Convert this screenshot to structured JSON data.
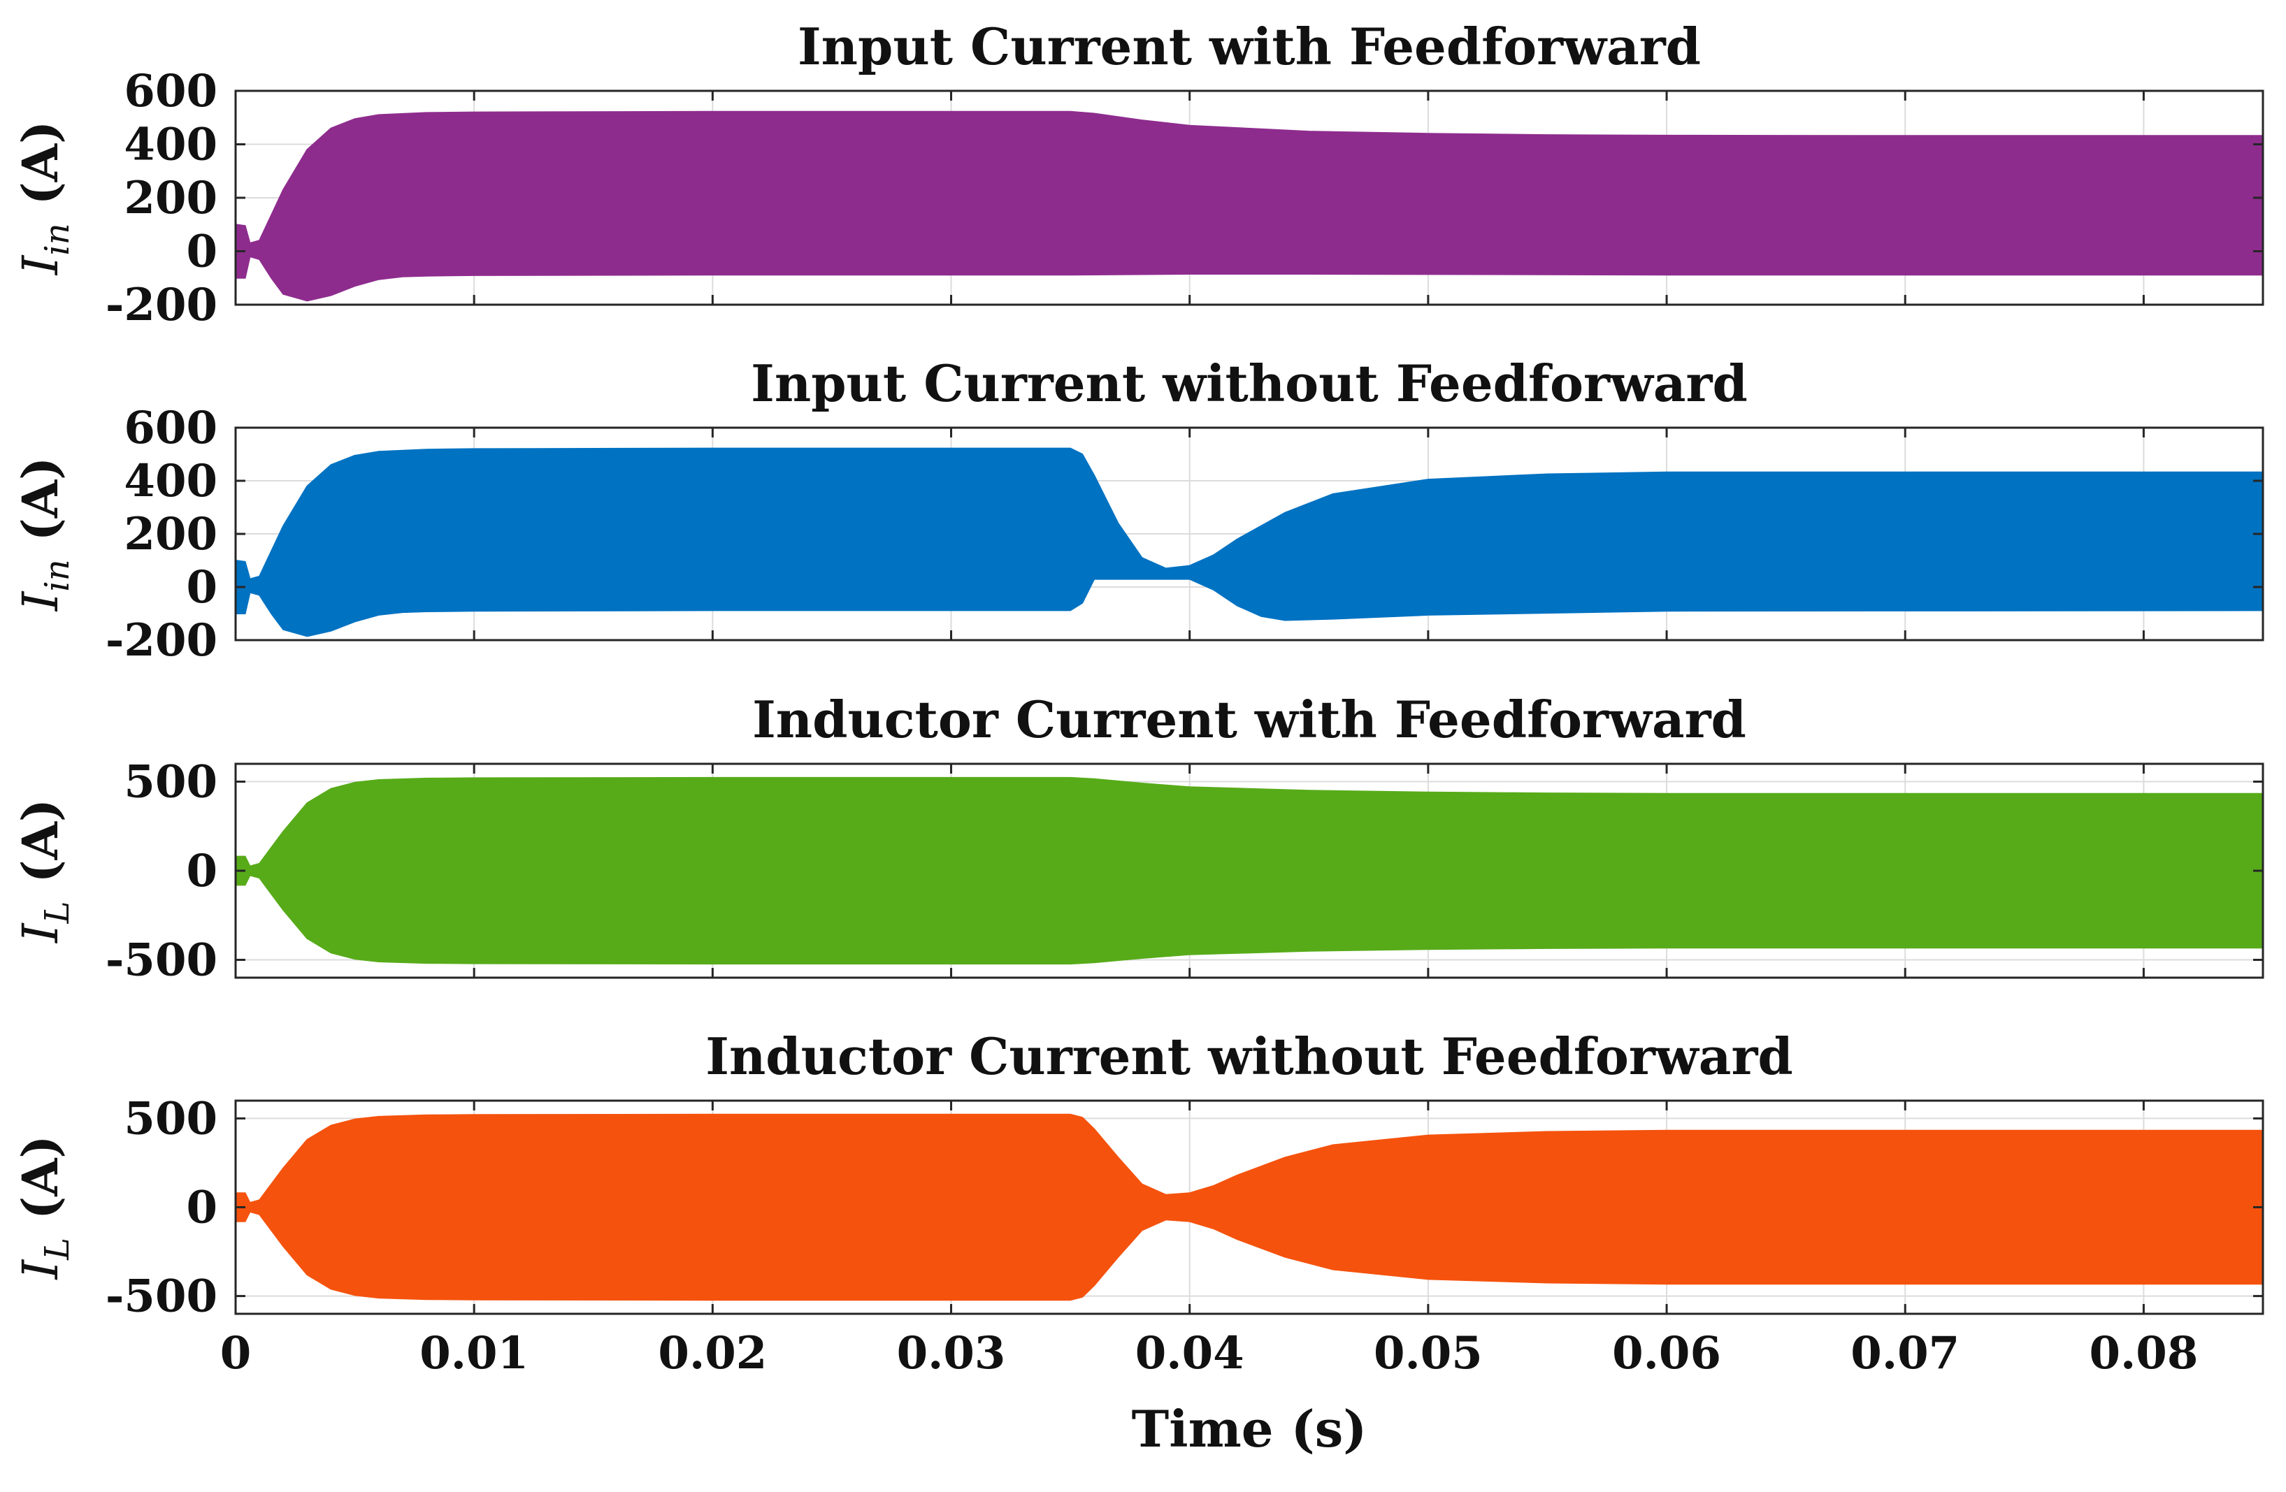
{
  "chart_data": [
    {
      "type": "area",
      "title": "Input Current with Feedforward",
      "ylabel": {
        "symbol": "I",
        "subscript": "in",
        "unit": "(A)"
      },
      "ylim": [
        -200,
        600
      ],
      "yticks": [
        -200,
        0,
        200,
        400,
        600
      ],
      "xlim": [
        0,
        0.085
      ],
      "xticks": [
        0,
        0.01,
        0.02,
        0.03,
        0.04,
        0.05,
        0.06,
        0.07,
        0.08
      ],
      "grid": true,
      "color": "#8e2c8e",
      "series": [
        {
          "role": "envelope_upper",
          "x": [
            0,
            0.0004,
            0.0006,
            0.001,
            0.002,
            0.003,
            0.004,
            0.005,
            0.006,
            0.008,
            0.01,
            0.02,
            0.035,
            0.036,
            0.038,
            0.04,
            0.045,
            0.05,
            0.055,
            0.06,
            0.07,
            0.085
          ],
          "y": [
            100,
            95,
            30,
            40,
            230,
            380,
            460,
            495,
            510,
            518,
            520,
            522,
            522,
            515,
            490,
            470,
            448,
            440,
            435,
            433,
            432,
            432
          ]
        },
        {
          "role": "envelope_lower",
          "x": [
            0,
            0.0004,
            0.0006,
            0.001,
            0.0015,
            0.002,
            0.003,
            0.004,
            0.005,
            0.006,
            0.007,
            0.008,
            0.01,
            0.02,
            0.035,
            0.04,
            0.045,
            0.05,
            0.06,
            0.085
          ],
          "y": [
            -100,
            -100,
            -20,
            -30,
            -100,
            -160,
            -185,
            -165,
            -130,
            -105,
            -95,
            -92,
            -90,
            -88,
            -88,
            -85,
            -85,
            -86,
            -88,
            -88
          ]
        }
      ]
    },
    {
      "type": "area",
      "title": "Input Current without Feedforward",
      "ylabel": {
        "symbol": "I",
        "subscript": "in",
        "unit": "(A)"
      },
      "ylim": [
        -200,
        600
      ],
      "yticks": [
        -200,
        0,
        200,
        400,
        600
      ],
      "xlim": [
        0,
        0.085
      ],
      "xticks": [
        0,
        0.01,
        0.02,
        0.03,
        0.04,
        0.05,
        0.06,
        0.07,
        0.08
      ],
      "grid": true,
      "color": "#0072c2",
      "series": [
        {
          "role": "envelope_upper",
          "x": [
            0,
            0.0004,
            0.0006,
            0.001,
            0.002,
            0.003,
            0.004,
            0.005,
            0.006,
            0.008,
            0.01,
            0.02,
            0.035,
            0.0355,
            0.036,
            0.037,
            0.038,
            0.039,
            0.04,
            0.041,
            0.042,
            0.044,
            0.046,
            0.05,
            0.055,
            0.06,
            0.07,
            0.085
          ],
          "y": [
            100,
            95,
            30,
            40,
            230,
            380,
            460,
            495,
            510,
            518,
            520,
            522,
            522,
            500,
            420,
            240,
            110,
            70,
            80,
            120,
            180,
            280,
            350,
            405,
            425,
            432,
            432,
            432
          ]
        },
        {
          "role": "envelope_lower",
          "x": [
            0,
            0.0004,
            0.0006,
            0.001,
            0.0015,
            0.002,
            0.003,
            0.004,
            0.005,
            0.006,
            0.007,
            0.008,
            0.01,
            0.02,
            0.035,
            0.0355,
            0.036,
            0.039,
            0.04,
            0.041,
            0.042,
            0.043,
            0.044,
            0.046,
            0.05,
            0.06,
            0.085
          ],
          "y": [
            -100,
            -100,
            -20,
            -30,
            -100,
            -160,
            -185,
            -165,
            -130,
            -105,
            -95,
            -92,
            -90,
            -88,
            -88,
            -60,
            30,
            30,
            30,
            -10,
            -70,
            -110,
            -125,
            -120,
            -105,
            -90,
            -88
          ]
        }
      ]
    },
    {
      "type": "area",
      "title": "Inductor Current with Feedforward",
      "ylabel": {
        "symbol": "I",
        "subscript": "L",
        "unit": "(A)"
      },
      "ylim": [
        -600,
        600
      ],
      "yticks": [
        -500,
        0,
        500
      ],
      "xlim": [
        0,
        0.085
      ],
      "xticks": [
        0,
        0.01,
        0.02,
        0.03,
        0.04,
        0.05,
        0.06,
        0.07,
        0.08
      ],
      "grid": true,
      "color": "#57ab19",
      "series": [
        {
          "role": "envelope_upper",
          "x": [
            0,
            0.0004,
            0.0006,
            0.001,
            0.002,
            0.003,
            0.004,
            0.005,
            0.006,
            0.008,
            0.01,
            0.02,
            0.035,
            0.036,
            0.038,
            0.04,
            0.045,
            0.05,
            0.055,
            0.06,
            0.07,
            0.085
          ],
          "y": [
            80,
            80,
            25,
            40,
            220,
            380,
            460,
            495,
            510,
            518,
            520,
            522,
            522,
            515,
            490,
            470,
            450,
            440,
            435,
            432,
            432,
            432
          ]
        },
        {
          "role": "envelope_lower",
          "x": [
            0,
            0.0004,
            0.0006,
            0.001,
            0.002,
            0.003,
            0.004,
            0.005,
            0.006,
            0.008,
            0.01,
            0.02,
            0.035,
            0.036,
            0.038,
            0.04,
            0.045,
            0.05,
            0.055,
            0.06,
            0.07,
            0.085
          ],
          "y": [
            -80,
            -80,
            -25,
            -40,
            -220,
            -380,
            -460,
            -495,
            -510,
            -518,
            -520,
            -522,
            -522,
            -515,
            -490,
            -470,
            -450,
            -440,
            -435,
            -432,
            -432,
            -432
          ]
        }
      ]
    },
    {
      "type": "area",
      "title": "Inductor Current without Feedforward",
      "ylabel": {
        "symbol": "I",
        "subscript": "L",
        "unit": "(A)"
      },
      "ylim": [
        -600,
        600
      ],
      "yticks": [
        -500,
        0,
        500
      ],
      "xlim": [
        0,
        0.085
      ],
      "xticks": [
        0,
        0.01,
        0.02,
        0.03,
        0.04,
        0.05,
        0.06,
        0.07,
        0.08
      ],
      "xticklabels": [
        "0",
        "0.01",
        "0.02",
        "0.03",
        "0.04",
        "0.05",
        "0.06",
        "0.07",
        "0.08"
      ],
      "xlabel": "Time (s)",
      "grid": true,
      "color": "#f5520d",
      "series": [
        {
          "role": "envelope_upper",
          "x": [
            0,
            0.0004,
            0.0006,
            0.001,
            0.002,
            0.003,
            0.004,
            0.005,
            0.006,
            0.008,
            0.01,
            0.02,
            0.035,
            0.0355,
            0.036,
            0.037,
            0.038,
            0.039,
            0.04,
            0.041,
            0.042,
            0.044,
            0.046,
            0.05,
            0.055,
            0.06,
            0.07,
            0.085
          ],
          "y": [
            80,
            80,
            25,
            40,
            220,
            380,
            460,
            495,
            510,
            518,
            520,
            522,
            522,
            505,
            440,
            280,
            130,
            70,
            80,
            120,
            180,
            280,
            350,
            405,
            425,
            432,
            432,
            432
          ]
        },
        {
          "role": "envelope_lower",
          "x": [
            0,
            0.0004,
            0.0006,
            0.001,
            0.002,
            0.003,
            0.004,
            0.005,
            0.006,
            0.008,
            0.01,
            0.02,
            0.035,
            0.0355,
            0.036,
            0.037,
            0.038,
            0.039,
            0.04,
            0.041,
            0.042,
            0.044,
            0.046,
            0.05,
            0.055,
            0.06,
            0.07,
            0.085
          ],
          "y": [
            -80,
            -80,
            -25,
            -40,
            -220,
            -380,
            -460,
            -495,
            -510,
            -518,
            -520,
            -522,
            -522,
            -505,
            -440,
            -280,
            -130,
            -70,
            -80,
            -120,
            -180,
            -280,
            -350,
            -405,
            -425,
            -432,
            -432,
            -432
          ]
        }
      ]
    }
  ]
}
